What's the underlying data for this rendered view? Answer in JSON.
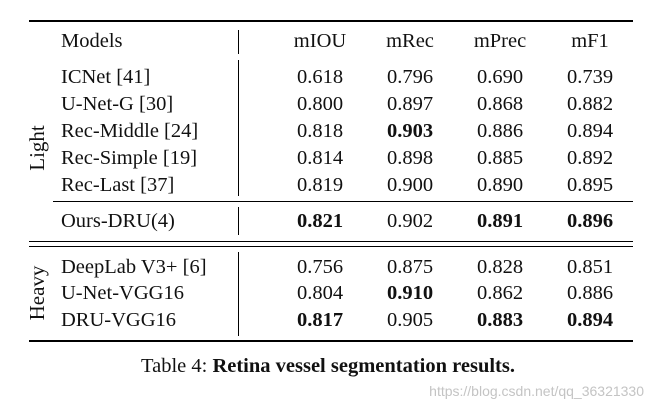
{
  "table": {
    "header": {
      "model": "Models",
      "columns": [
        "mIOU",
        "mRec",
        "mPrec",
        "mF1"
      ]
    },
    "groups": [
      {
        "label": "Light",
        "rows": [
          {
            "model": "ICNet [41]",
            "values": [
              "0.618",
              "0.796",
              "0.690",
              "0.739"
            ],
            "bold": [
              false,
              false,
              false,
              false
            ]
          },
          {
            "model": "U-Net-G [30]",
            "values": [
              "0.800",
              "0.897",
              "0.868",
              "0.882"
            ],
            "bold": [
              false,
              false,
              false,
              false
            ]
          },
          {
            "model": "Rec-Middle [24]",
            "values": [
              "0.818",
              "0.903",
              "0.886",
              "0.894"
            ],
            "bold": [
              false,
              true,
              false,
              false
            ]
          },
          {
            "model": "Rec-Simple [19]",
            "values": [
              "0.814",
              "0.898",
              "0.885",
              "0.892"
            ],
            "bold": [
              false,
              false,
              false,
              false
            ]
          },
          {
            "model": "Rec-Last [37]",
            "values": [
              "0.819",
              "0.900",
              "0.890",
              "0.895"
            ],
            "bold": [
              false,
              false,
              false,
              false
            ]
          },
          {
            "model": "Ours-DRU(4)",
            "values": [
              "0.821",
              "0.902",
              "0.891",
              "0.896"
            ],
            "bold": [
              true,
              false,
              true,
              true
            ]
          }
        ]
      },
      {
        "label": "Heavy",
        "rows": [
          {
            "model": "DeepLab V3+ [6]",
            "values": [
              "0.756",
              "0.875",
              "0.828",
              "0.851"
            ],
            "bold": [
              false,
              false,
              false,
              false
            ]
          },
          {
            "model": "U-Net-VGG16",
            "values": [
              "0.804",
              "0.910",
              "0.862",
              "0.886"
            ],
            "bold": [
              false,
              true,
              false,
              false
            ]
          },
          {
            "model": "DRU-VGG16",
            "values": [
              "0.817",
              "0.905",
              "0.883",
              "0.894"
            ],
            "bold": [
              true,
              false,
              true,
              true
            ]
          }
        ]
      }
    ]
  },
  "caption": {
    "prefix": "Table 4: ",
    "title": "Retina vessel segmentation results."
  },
  "watermark": "https://blog.csdn.net/qq_36321330"
}
